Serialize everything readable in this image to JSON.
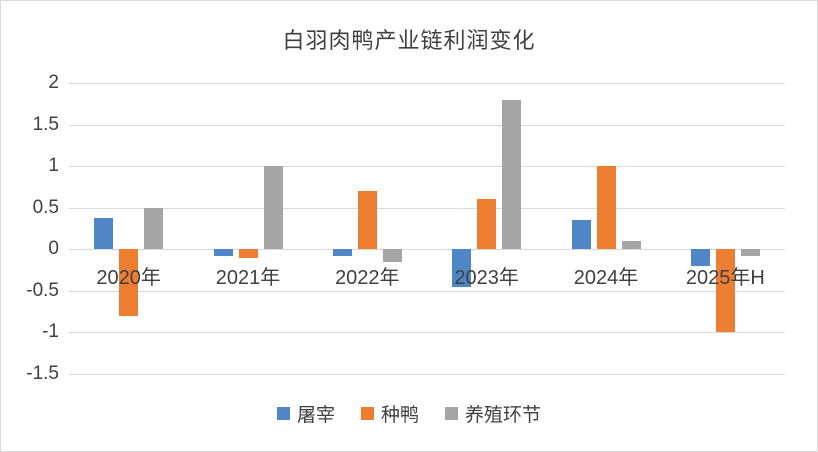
{
  "title": "白羽肉鸭产业链利润变化",
  "colors": {
    "series_blue": "#4E86C8",
    "series_orange": "#ED7D31",
    "series_gray": "#A5A5A5",
    "gridline": "#D9D9D9",
    "text": "#404040"
  },
  "chart_data": {
    "type": "bar",
    "title": "白羽肉鸭产业链利润变化",
    "categories": [
      "2020年",
      "2021年",
      "2022年",
      "2023年",
      "2024年",
      "2025年H"
    ],
    "series": [
      {
        "name": "屠宰",
        "color": "#4E86C8",
        "values": [
          0.38,
          -0.08,
          -0.08,
          -0.45,
          0.35,
          -0.2
        ]
      },
      {
        "name": "种鸭",
        "color": "#ED7D31",
        "values": [
          -0.8,
          -0.1,
          0.7,
          0.6,
          1.0,
          -1.0
        ]
      },
      {
        "name": "养殖环节",
        "color": "#A5A5A5",
        "values": [
          0.5,
          1.0,
          -0.15,
          1.8,
          0.1,
          -0.08
        ]
      }
    ],
    "xlabel": "",
    "ylabel": "",
    "ylim": [
      -1.5,
      2
    ],
    "ytick_step": 0.5,
    "yticks": [
      "2",
      "1.5",
      "1",
      "0.5",
      "0",
      "-0.5",
      "-1",
      "-1.5"
    ],
    "grid": true,
    "legend_position": "bottom"
  }
}
